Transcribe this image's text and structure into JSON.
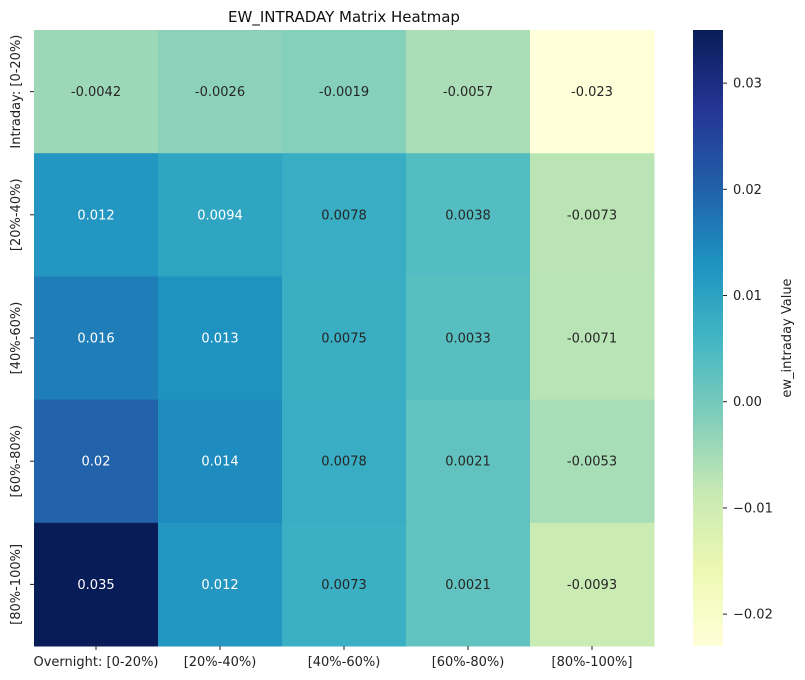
{
  "chart_data": {
    "type": "heatmap",
    "title": "EW_INTRADAY Matrix Heatmap",
    "x_categories": [
      "Overnight: [0-20%)",
      "[20%-40%)",
      "[40%-60%)",
      "[60%-80%)",
      "[80%-100%]"
    ],
    "y_categories": [
      "Intraday: [0-20%)",
      "[20%-40%)",
      "[40%-60%)",
      "[60%-80%)",
      "[80%-100%]"
    ],
    "values": [
      [
        -0.0042,
        -0.0026,
        -0.0019,
        -0.0057,
        -0.023
      ],
      [
        0.012,
        0.0094,
        0.0078,
        0.0038,
        -0.0073
      ],
      [
        0.016,
        0.013,
        0.0075,
        0.0033,
        -0.0071
      ],
      [
        0.02,
        0.014,
        0.0078,
        0.0021,
        -0.0053
      ],
      [
        0.035,
        0.012,
        0.0073,
        0.0021,
        -0.0093
      ]
    ],
    "cell_labels": [
      [
        "-0.0042",
        "-0.0026",
        "-0.0019",
        "-0.0057",
        "-0.023"
      ],
      [
        "0.012",
        "0.0094",
        "0.0078",
        "0.0038",
        "-0.0073"
      ],
      [
        "0.016",
        "0.013",
        "0.0075",
        "0.0033",
        "-0.0071"
      ],
      [
        "0.02",
        "0.014",
        "0.0078",
        "0.0021",
        "-0.0053"
      ],
      [
        "0.035",
        "0.012",
        "0.0073",
        "0.0021",
        "-0.0093"
      ]
    ],
    "colorbar": {
      "label": "ew_intraday Value",
      "range": [
        -0.023,
        0.035
      ],
      "ticks": [
        0.03,
        0.02,
        0.01,
        0.0,
        -0.01,
        -0.02
      ],
      "tick_labels": [
        "0.03",
        "0.02",
        "0.01",
        "0.00",
        "−0.01",
        "−0.02"
      ],
      "colormap": "YlGnBu",
      "colormap_stops": [
        "#ffffd9",
        "#edf8b1",
        "#c7e9b4",
        "#7fcdbb",
        "#41b6c4",
        "#1d91c0",
        "#225ea8",
        "#253494",
        "#081d58"
      ]
    },
    "grid": false
  }
}
